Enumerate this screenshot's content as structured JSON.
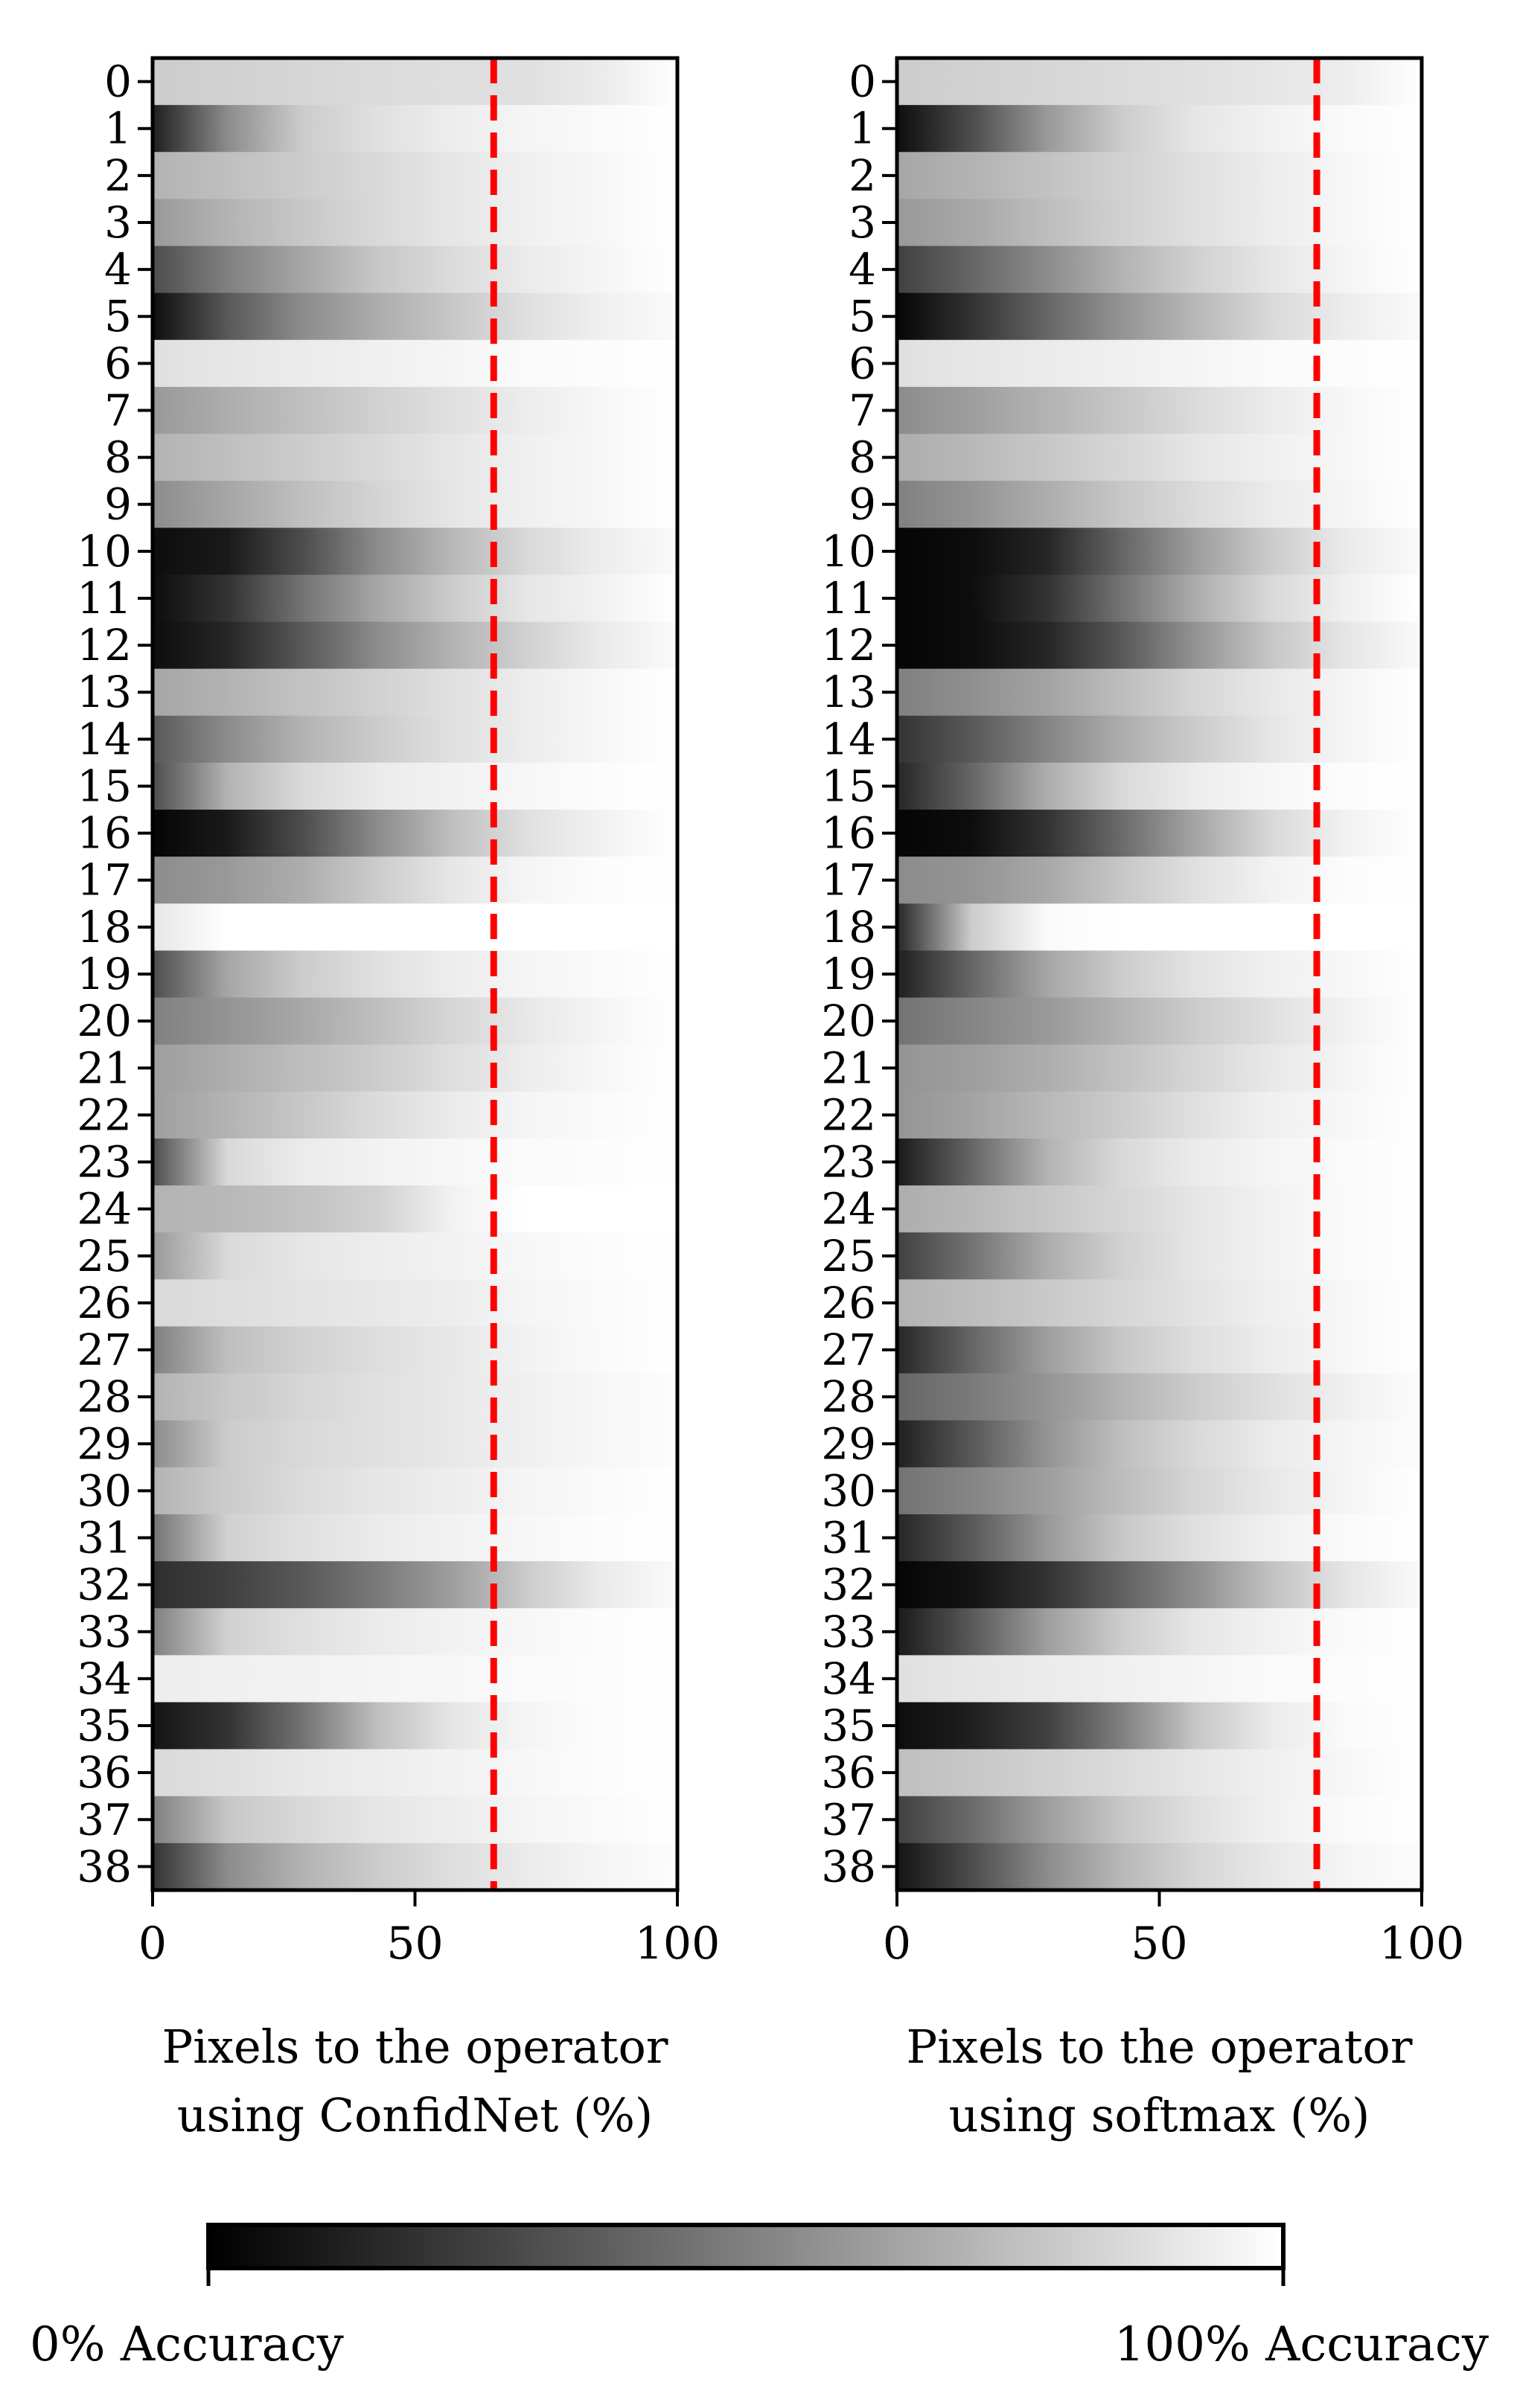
{
  "chart_data": [
    {
      "type": "heatmap",
      "xlabel": [
        "Pixels to the operator",
        "using ConfidNet (%)"
      ],
      "categories": [
        "0",
        "1",
        "2",
        "3",
        "4",
        "5",
        "6",
        "7",
        "8",
        "9",
        "10",
        "11",
        "12",
        "13",
        "14",
        "15",
        "16",
        "17",
        "18",
        "19",
        "20",
        "21",
        "22",
        "23",
        "24",
        "25",
        "26",
        "27",
        "28",
        "29",
        "30",
        "31",
        "32",
        "33",
        "34",
        "35",
        "36",
        "37",
        "38"
      ],
      "xlim": [
        0,
        100
      ],
      "xticks": [
        "0",
        "50",
        "100"
      ],
      "threshold_line": {
        "x": 65,
        "color": "#ff0000",
        "style": "dashed"
      },
      "rows": [
        [
          0.8,
          0.82,
          0.84,
          0.86,
          0.87,
          0.88,
          0.92,
          1.0
        ],
        [
          0.12,
          0.55,
          0.8,
          0.88,
          0.93,
          0.96,
          0.98,
          1.0
        ],
        [
          0.7,
          0.75,
          0.8,
          0.85,
          0.9,
          0.94,
          0.97,
          1.0
        ],
        [
          0.6,
          0.7,
          0.78,
          0.85,
          0.9,
          0.94,
          0.97,
          1.0
        ],
        [
          0.3,
          0.5,
          0.65,
          0.78,
          0.86,
          0.92,
          0.96,
          1.0
        ],
        [
          0.05,
          0.35,
          0.55,
          0.68,
          0.78,
          0.88,
          0.94,
          0.98
        ],
        [
          0.88,
          0.9,
          0.92,
          0.94,
          0.96,
          0.98,
          0.99,
          1.0
        ],
        [
          0.6,
          0.68,
          0.75,
          0.82,
          0.88,
          0.93,
          0.97,
          1.0
        ],
        [
          0.7,
          0.75,
          0.8,
          0.85,
          0.9,
          0.94,
          0.97,
          1.0
        ],
        [
          0.55,
          0.65,
          0.75,
          0.83,
          0.9,
          0.94,
          0.97,
          1.0
        ],
        [
          0.05,
          0.1,
          0.3,
          0.55,
          0.72,
          0.85,
          0.93,
          0.98
        ],
        [
          0.05,
          0.2,
          0.45,
          0.65,
          0.8,
          0.9,
          0.95,
          1.0
        ],
        [
          0.05,
          0.15,
          0.35,
          0.55,
          0.7,
          0.82,
          0.92,
          0.98
        ],
        [
          0.65,
          0.7,
          0.76,
          0.82,
          0.88,
          0.93,
          0.97,
          1.0
        ],
        [
          0.35,
          0.55,
          0.7,
          0.8,
          0.88,
          0.93,
          0.97,
          1.0
        ],
        [
          0.3,
          0.7,
          0.85,
          0.92,
          0.95,
          0.97,
          0.99,
          1.0
        ],
        [
          0.02,
          0.1,
          0.3,
          0.55,
          0.75,
          0.88,
          0.95,
          1.0
        ],
        [
          0.55,
          0.6,
          0.68,
          0.8,
          0.9,
          0.96,
          0.99,
          1.0
        ],
        [
          0.9,
          1.0,
          1.0,
          1.0,
          1.0,
          1.0,
          1.0,
          1.0
        ],
        [
          0.3,
          0.65,
          0.8,
          0.88,
          0.93,
          0.96,
          0.98,
          1.0
        ],
        [
          0.5,
          0.58,
          0.66,
          0.75,
          0.84,
          0.91,
          0.96,
          1.0
        ],
        [
          0.62,
          0.68,
          0.74,
          0.8,
          0.87,
          0.93,
          0.97,
          1.0
        ],
        [
          0.62,
          0.7,
          0.78,
          0.86,
          0.92,
          0.96,
          0.98,
          1.0
        ],
        [
          0.3,
          0.85,
          0.92,
          0.95,
          0.97,
          0.98,
          0.99,
          1.0
        ],
        [
          0.7,
          0.72,
          0.76,
          0.82,
          0.95,
          1.0,
          1.0,
          1.0
        ],
        [
          0.6,
          0.85,
          0.9,
          0.93,
          0.95,
          0.97,
          0.99,
          1.0
        ],
        [
          0.85,
          0.87,
          0.89,
          0.91,
          0.93,
          0.96,
          0.98,
          1.0
        ],
        [
          0.5,
          0.75,
          0.82,
          0.87,
          0.91,
          0.95,
          0.98,
          1.0
        ],
        [
          0.7,
          0.78,
          0.84,
          0.88,
          0.91,
          0.94,
          0.97,
          0.99
        ],
        [
          0.55,
          0.8,
          0.85,
          0.88,
          0.91,
          0.94,
          0.97,
          0.99
        ],
        [
          0.7,
          0.8,
          0.86,
          0.9,
          0.93,
          0.96,
          0.98,
          1.0
        ],
        [
          0.45,
          0.82,
          0.88,
          0.92,
          0.95,
          0.97,
          0.99,
          1.0
        ],
        [
          0.18,
          0.25,
          0.35,
          0.48,
          0.62,
          0.8,
          0.92,
          0.98
        ],
        [
          0.5,
          0.82,
          0.88,
          0.92,
          0.95,
          0.97,
          0.99,
          1.0
        ],
        [
          0.93,
          0.94,
          0.95,
          0.96,
          0.97,
          0.98,
          0.99,
          1.0
        ],
        [
          0.08,
          0.2,
          0.45,
          0.75,
          0.9,
          0.96,
          0.99,
          1.0
        ],
        [
          0.85,
          0.88,
          0.91,
          0.93,
          0.95,
          0.97,
          0.99,
          1.0
        ],
        [
          0.5,
          0.78,
          0.85,
          0.9,
          0.93,
          0.96,
          0.98,
          1.0
        ],
        [
          0.2,
          0.55,
          0.7,
          0.8,
          0.87,
          0.92,
          0.96,
          0.99
        ]
      ]
    },
    {
      "type": "heatmap",
      "xlabel": [
        "Pixels to the operator",
        "using softmax (%)"
      ],
      "categories": [
        "0",
        "1",
        "2",
        "3",
        "4",
        "5",
        "6",
        "7",
        "8",
        "9",
        "10",
        "11",
        "12",
        "13",
        "14",
        "15",
        "16",
        "17",
        "18",
        "19",
        "20",
        "21",
        "22",
        "23",
        "24",
        "25",
        "26",
        "27",
        "28",
        "29",
        "30",
        "31",
        "32",
        "33",
        "34",
        "35",
        "36",
        "37",
        "38"
      ],
      "xlim": [
        0,
        100
      ],
      "xticks": [
        "0",
        "50",
        "100"
      ],
      "threshold_line": {
        "x": 80,
        "color": "#ff0000",
        "style": "dashed"
      },
      "rows": [
        [
          0.8,
          0.82,
          0.84,
          0.86,
          0.88,
          0.9,
          0.93,
          1.0
        ],
        [
          0.05,
          0.3,
          0.6,
          0.8,
          0.9,
          0.95,
          0.98,
          1.0
        ],
        [
          0.65,
          0.7,
          0.76,
          0.82,
          0.88,
          0.93,
          0.97,
          1.0
        ],
        [
          0.6,
          0.66,
          0.74,
          0.82,
          0.88,
          0.93,
          0.97,
          1.0
        ],
        [
          0.25,
          0.4,
          0.55,
          0.7,
          0.82,
          0.9,
          0.96,
          1.0
        ],
        [
          0.02,
          0.2,
          0.4,
          0.58,
          0.72,
          0.85,
          0.93,
          0.98
        ],
        [
          0.88,
          0.9,
          0.92,
          0.94,
          0.96,
          0.98,
          0.99,
          1.0
        ],
        [
          0.55,
          0.62,
          0.7,
          0.78,
          0.86,
          0.92,
          0.97,
          1.0
        ],
        [
          0.68,
          0.72,
          0.78,
          0.84,
          0.9,
          0.94,
          0.97,
          1.0
        ],
        [
          0.5,
          0.58,
          0.68,
          0.78,
          0.86,
          0.92,
          0.96,
          1.0
        ],
        [
          0.02,
          0.05,
          0.15,
          0.4,
          0.62,
          0.8,
          0.92,
          0.98
        ],
        [
          0.02,
          0.05,
          0.2,
          0.45,
          0.68,
          0.85,
          0.94,
          1.0
        ],
        [
          0.02,
          0.05,
          0.15,
          0.35,
          0.58,
          0.78,
          0.9,
          0.98
        ],
        [
          0.5,
          0.56,
          0.64,
          0.74,
          0.84,
          0.91,
          0.96,
          1.0
        ],
        [
          0.2,
          0.35,
          0.52,
          0.68,
          0.8,
          0.9,
          0.96,
          1.0
        ],
        [
          0.15,
          0.4,
          0.68,
          0.85,
          0.93,
          0.97,
          0.99,
          1.0
        ],
        [
          0.02,
          0.05,
          0.2,
          0.42,
          0.65,
          0.85,
          0.95,
          1.0
        ],
        [
          0.55,
          0.58,
          0.66,
          0.78,
          0.88,
          0.95,
          0.99,
          1.0
        ],
        [
          0.15,
          0.8,
          0.98,
          1.0,
          1.0,
          1.0,
          1.0,
          1.0
        ],
        [
          0.12,
          0.4,
          0.65,
          0.8,
          0.89,
          0.94,
          0.97,
          1.0
        ],
        [
          0.45,
          0.52,
          0.6,
          0.7,
          0.8,
          0.88,
          0.95,
          1.0
        ],
        [
          0.58,
          0.62,
          0.68,
          0.76,
          0.84,
          0.91,
          0.96,
          1.0
        ],
        [
          0.58,
          0.64,
          0.72,
          0.8,
          0.88,
          0.94,
          0.97,
          1.0
        ],
        [
          0.1,
          0.4,
          0.7,
          0.85,
          0.92,
          0.96,
          0.98,
          1.0
        ],
        [
          0.68,
          0.72,
          0.78,
          0.84,
          0.9,
          0.95,
          0.98,
          1.0
        ],
        [
          0.25,
          0.45,
          0.68,
          0.82,
          0.9,
          0.95,
          0.98,
          1.0
        ],
        [
          0.7,
          0.74,
          0.79,
          0.84,
          0.89,
          0.94,
          0.97,
          1.0
        ],
        [
          0.15,
          0.4,
          0.62,
          0.78,
          0.87,
          0.93,
          0.97,
          1.0
        ],
        [
          0.4,
          0.48,
          0.58,
          0.7,
          0.8,
          0.88,
          0.94,
          0.99
        ],
        [
          0.12,
          0.35,
          0.58,
          0.75,
          0.85,
          0.92,
          0.96,
          0.99
        ],
        [
          0.45,
          0.52,
          0.62,
          0.74,
          0.84,
          0.91,
          0.96,
          1.0
        ],
        [
          0.15,
          0.35,
          0.6,
          0.78,
          0.88,
          0.94,
          0.98,
          1.0
        ],
        [
          0.02,
          0.08,
          0.2,
          0.38,
          0.56,
          0.76,
          0.9,
          0.98
        ],
        [
          0.1,
          0.35,
          0.62,
          0.8,
          0.9,
          0.95,
          0.98,
          1.0
        ],
        [
          0.88,
          0.9,
          0.92,
          0.94,
          0.96,
          0.98,
          0.99,
          1.0
        ],
        [
          0.05,
          0.12,
          0.25,
          0.5,
          0.78,
          0.92,
          0.98,
          1.0
        ],
        [
          0.75,
          0.78,
          0.82,
          0.86,
          0.9,
          0.94,
          0.97,
          1.0
        ],
        [
          0.25,
          0.42,
          0.62,
          0.78,
          0.88,
          0.94,
          0.98,
          1.0
        ],
        [
          0.08,
          0.3,
          0.55,
          0.72,
          0.84,
          0.91,
          0.96,
          0.99
        ]
      ]
    }
  ],
  "colorbar": {
    "min_label": "0% Accuracy",
    "max_label": "100% Accuracy",
    "colors": [
      "#000000",
      "#ffffff"
    ]
  }
}
